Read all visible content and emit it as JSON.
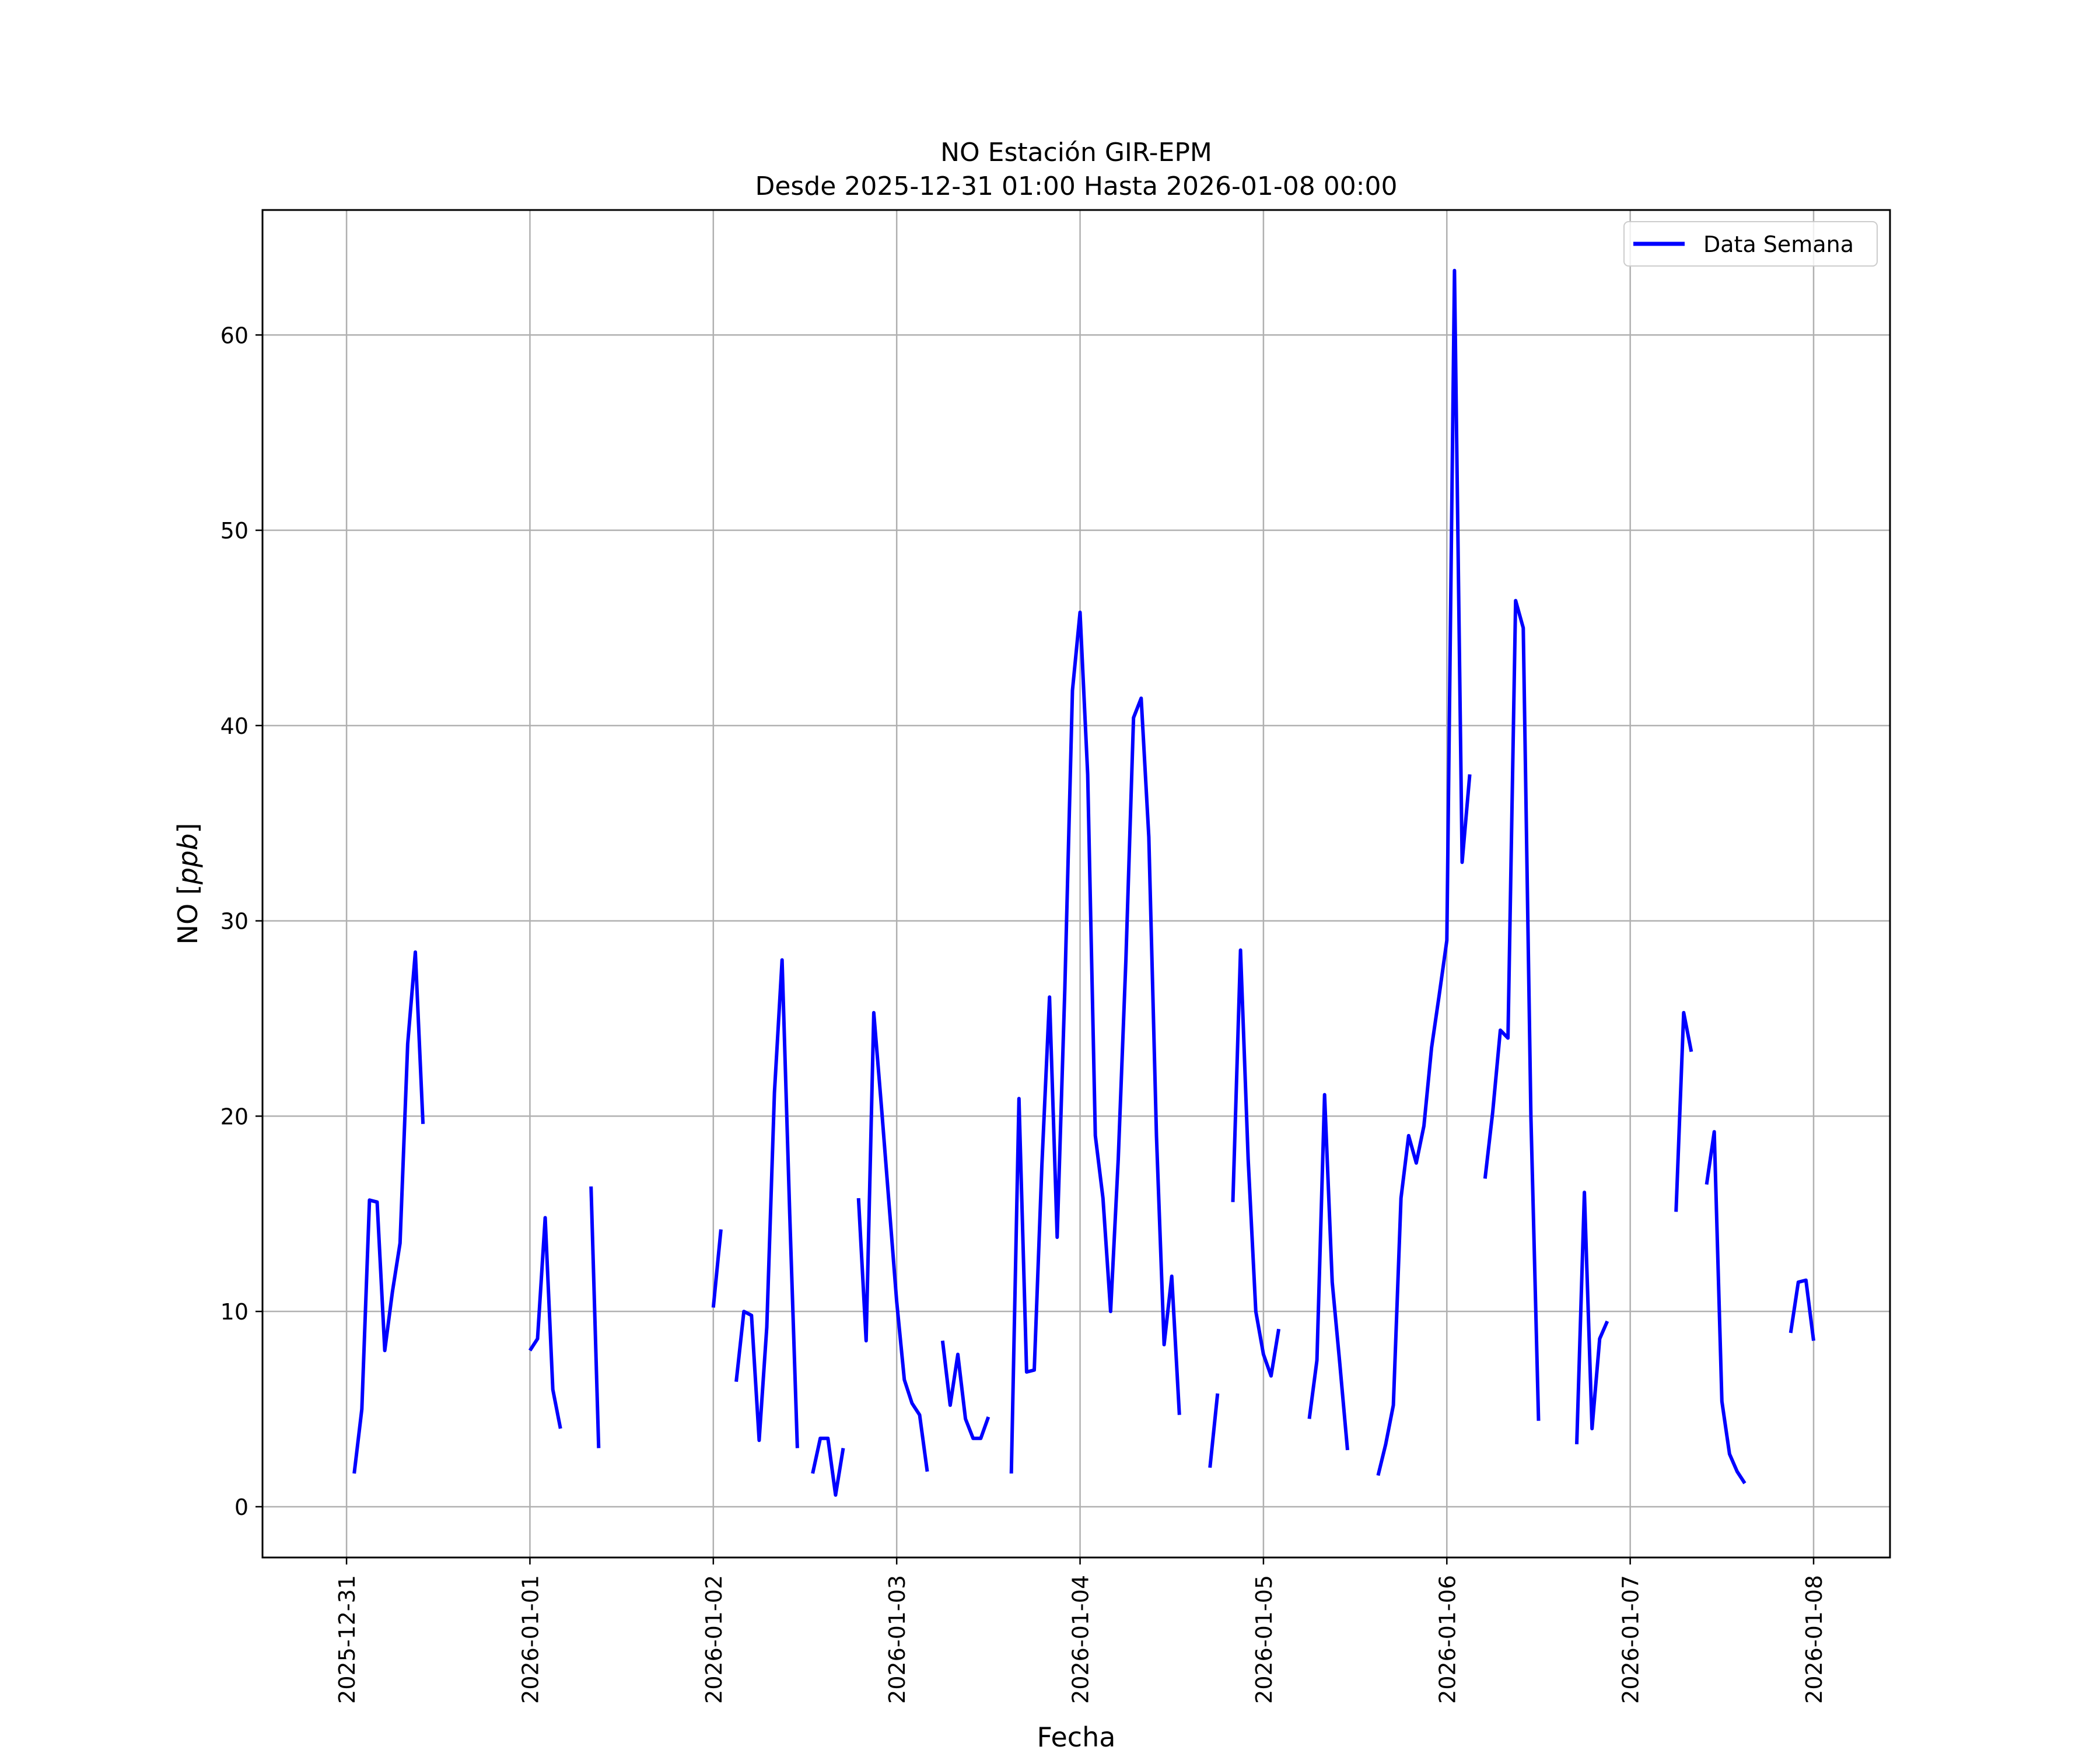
{
  "chart_data": {
    "type": "line",
    "title": "NO Estación GIR-EPM",
    "subtitle": "Desde 2025-12-31 01:00 Hasta 2026-01-08 00:00",
    "xlabel": "Fecha",
    "ylabel_prefix": "NO [",
    "ylabel_unit": "ppb",
    "ylabel_suffix": "]",
    "x_type": "datetime",
    "xlim": [
      "2025-12-30 13:00",
      "2026-01-08 10:00"
    ],
    "ylim": [
      -2.6,
      66.4
    ],
    "x_ticks": [
      "2025-12-31",
      "2026-01-01",
      "2026-01-02",
      "2026-01-03",
      "2026-01-04",
      "2026-01-05",
      "2026-01-06",
      "2026-01-07",
      "2026-01-08"
    ],
    "y_ticks": [
      0,
      10,
      20,
      30,
      40,
      50,
      60
    ],
    "grid": true,
    "legend_position": "top-right",
    "series": [
      {
        "name": "Data Semana",
        "color": "#0000ff",
        "segments": [
          [
            [
              "2025-12-31 01:00",
              1.7
            ],
            [
              "2025-12-31 02:00",
              5.0
            ],
            [
              "2025-12-31 03:00",
              15.7
            ],
            [
              "2025-12-31 04:00",
              15.6
            ],
            [
              "2025-12-31 05:00",
              8.0
            ],
            [
              "2025-12-31 06:00",
              11.0
            ],
            [
              "2025-12-31 07:00",
              13.5
            ],
            [
              "2025-12-31 08:00",
              23.7
            ],
            [
              "2025-12-31 09:00",
              28.4
            ],
            [
              "2025-12-31 10:00",
              19.6
            ]
          ],
          [
            [
              "2026-01-01 00:00",
              8.0
            ],
            [
              "2026-01-01 01:00",
              8.6
            ],
            [
              "2026-01-01 02:00",
              14.8
            ],
            [
              "2026-01-01 03:00",
              6.0
            ],
            [
              "2026-01-01 04:00",
              4.0
            ]
          ],
          [
            [
              "2026-01-01 08:00",
              16.4
            ],
            [
              "2026-01-01 09:00",
              3.0
            ]
          ],
          [
            [
              "2026-01-02 00:00",
              10.2
            ],
            [
              "2026-01-02 01:00",
              14.2
            ]
          ],
          [
            [
              "2026-01-02 03:00",
              6.4
            ],
            [
              "2026-01-02 04:00",
              10.0
            ],
            [
              "2026-01-02 05:00",
              9.8
            ],
            [
              "2026-01-02 06:00",
              3.4
            ],
            [
              "2026-01-02 07:00",
              9.2
            ],
            [
              "2026-01-02 08:00",
              21.2
            ],
            [
              "2026-01-02 09:00",
              28.0
            ],
            [
              "2026-01-02 10:00",
              15.0
            ],
            [
              "2026-01-02 11:00",
              3.0
            ]
          ],
          [
            [
              "2026-01-02 13:00",
              1.7
            ],
            [
              "2026-01-02 14:00",
              3.5
            ],
            [
              "2026-01-02 15:00",
              3.5
            ],
            [
              "2026-01-02 16:00",
              0.6
            ],
            [
              "2026-01-02 17:00",
              3.0
            ]
          ],
          [
            [
              "2026-01-02 19:00",
              15.8
            ],
            [
              "2026-01-02 20:00",
              8.5
            ],
            [
              "2026-01-02 21:00",
              25.3
            ],
            [
              "2026-01-02 22:00",
              20.5
            ],
            [
              "2026-01-02 23:00",
              15.5
            ],
            [
              "2026-01-03 00:00",
              10.5
            ],
            [
              "2026-01-03 01:00",
              6.5
            ],
            [
              "2026-01-03 02:00",
              5.3
            ],
            [
              "2026-01-03 03:00",
              4.7
            ],
            [
              "2026-01-03 04:00",
              1.8
            ]
          ],
          [
            [
              "2026-01-03 06:00",
              8.5
            ],
            [
              "2026-01-03 07:00",
              5.2
            ],
            [
              "2026-01-03 08:00",
              7.8
            ],
            [
              "2026-01-03 09:00",
              4.5
            ],
            [
              "2026-01-03 10:00",
              3.5
            ],
            [
              "2026-01-03 11:00",
              3.5
            ],
            [
              "2026-01-03 12:00",
              4.6
            ]
          ],
          [
            [
              "2026-01-03 15:00",
              1.7
            ],
            [
              "2026-01-03 16:00",
              20.9
            ],
            [
              "2026-01-03 17:00",
              6.9
            ],
            [
              "2026-01-03 18:00",
              7.0
            ],
            [
              "2026-01-03 19:00",
              17.5
            ],
            [
              "2026-01-03 20:00",
              26.1
            ],
            [
              "2026-01-03 21:00",
              13.8
            ],
            [
              "2026-01-03 22:00",
              26.5
            ],
            [
              "2026-01-03 23:00",
              41.8
            ],
            [
              "2026-01-04 00:00",
              45.8
            ],
            [
              "2026-01-04 01:00",
              37.5
            ],
            [
              "2026-01-04 02:00",
              19.0
            ],
            [
              "2026-01-04 03:00",
              15.8
            ],
            [
              "2026-01-04 04:00",
              10.0
            ],
            [
              "2026-01-04 05:00",
              17.8
            ],
            [
              "2026-01-04 06:00",
              28.0
            ],
            [
              "2026-01-04 07:00",
              40.4
            ],
            [
              "2026-01-04 08:00",
              41.4
            ],
            [
              "2026-01-04 09:00",
              34.3
            ],
            [
              "2026-01-04 10:00",
              19.0
            ],
            [
              "2026-01-04 11:00",
              8.3
            ],
            [
              "2026-01-04 12:00",
              11.8
            ],
            [
              "2026-01-04 13:00",
              4.7
            ]
          ],
          [
            [
              "2026-01-04 17:00",
              2.0
            ],
            [
              "2026-01-04 18:00",
              5.8
            ]
          ],
          [
            [
              "2026-01-04 20:00",
              15.6
            ],
            [
              "2026-01-04 21:00",
              28.5
            ],
            [
              "2026-01-04 22:00",
              17.8
            ],
            [
              "2026-01-04 23:00",
              10.0
            ],
            [
              "2026-01-05 00:00",
              7.8
            ],
            [
              "2026-01-05 01:00",
              6.7
            ],
            [
              "2026-01-05 02:00",
              9.1
            ]
          ],
          [
            [
              "2026-01-05 06:00",
              4.5
            ],
            [
              "2026-01-05 07:00",
              7.5
            ],
            [
              "2026-01-05 08:00",
              21.1
            ],
            [
              "2026-01-05 09:00",
              11.5
            ],
            [
              "2026-01-05 10:00",
              7.3
            ],
            [
              "2026-01-05 11:00",
              2.9
            ]
          ],
          [
            [
              "2026-01-05 15:00",
              1.6
            ],
            [
              "2026-01-05 16:00",
              3.2
            ],
            [
              "2026-01-05 17:00",
              5.2
            ],
            [
              "2026-01-05 18:00",
              15.8
            ],
            [
              "2026-01-05 19:00",
              19.0
            ],
            [
              "2026-01-05 20:00",
              17.6
            ],
            [
              "2026-01-05 21:00",
              19.5
            ],
            [
              "2026-01-05 22:00",
              23.5
            ],
            [
              "2026-01-05 23:00",
              26.2
            ],
            [
              "2026-01-06 00:00",
              29.0
            ],
            [
              "2026-01-06 01:00",
              63.3
            ],
            [
              "2026-01-06 02:00",
              33.0
            ],
            [
              "2026-01-06 03:00",
              37.5
            ]
          ],
          [
            [
              "2026-01-06 05:00",
              16.8
            ],
            [
              "2026-01-06 06:00",
              20.2
            ],
            [
              "2026-01-06 07:00",
              24.4
            ],
            [
              "2026-01-06 08:00",
              24.0
            ],
            [
              "2026-01-06 09:00",
              46.4
            ],
            [
              "2026-01-06 10:00",
              45.0
            ],
            [
              "2026-01-06 11:00",
              20.0
            ],
            [
              "2026-01-06 12:00",
              4.4
            ]
          ],
          [
            [
              "2026-01-06 17:00",
              3.2
            ],
            [
              "2026-01-06 18:00",
              16.1
            ],
            [
              "2026-01-06 19:00",
              4.0
            ],
            [
              "2026-01-06 20:00",
              8.6
            ],
            [
              "2026-01-06 21:00",
              9.5
            ]
          ],
          [
            [
              "2026-01-07 06:00",
              15.1
            ],
            [
              "2026-01-07 07:00",
              25.3
            ],
            [
              "2026-01-07 08:00",
              23.3
            ]
          ],
          [
            [
              "2026-01-07 10:00",
              16.5
            ],
            [
              "2026-01-07 11:00",
              19.2
            ],
            [
              "2026-01-07 12:00",
              5.4
            ],
            [
              "2026-01-07 13:00",
              2.7
            ],
            [
              "2026-01-07 14:00",
              1.8
            ],
            [
              "2026-01-07 15:00",
              1.2
            ]
          ],
          [
            [
              "2026-01-07 21:00",
              8.9
            ],
            [
              "2026-01-07 22:00",
              11.5
            ],
            [
              "2026-01-07 23:00",
              11.6
            ],
            [
              "2026-01-08 00:00",
              8.5
            ]
          ]
        ]
      }
    ]
  }
}
